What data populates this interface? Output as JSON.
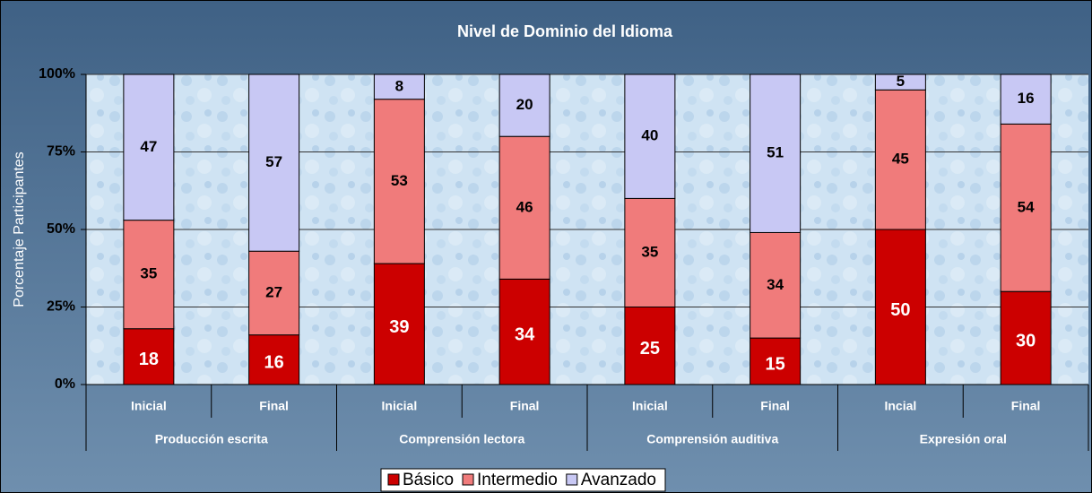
{
  "chart_data": {
    "type": "stacked_bar",
    "title": "Nivel de Dominio del Idioma",
    "y_label": "Porcentaje Participantes",
    "categories": [
      "Inicial",
      "Final",
      "Inicial",
      "Final",
      "Inicial",
      "Final",
      "Incial",
      "Final"
    ],
    "groups": [
      "Producción escrita",
      "Comprensión lectora",
      "Comprensión auditiva",
      "Expresión oral"
    ],
    "series": [
      {
        "name": "Básico",
        "color": "#cc0000",
        "label_color": "#ffffff",
        "values": [
          18,
          16,
          39,
          34,
          25,
          15,
          50,
          30
        ]
      },
      {
        "name": "Intermedio",
        "color": "#f07b7b",
        "label_color": "#000000",
        "values": [
          35,
          27,
          53,
          46,
          35,
          34,
          45,
          54
        ]
      },
      {
        "name": "Avanzado",
        "color": "#c8c8f4",
        "label_color": "#000000",
        "values": [
          47,
          57,
          8,
          20,
          40,
          51,
          5,
          16
        ]
      }
    ],
    "ylim": [
      0,
      100
    ],
    "yticks": [
      {
        "value": 0,
        "label": "0%"
      },
      {
        "value": 25,
        "label": "25%"
      },
      {
        "value": 50,
        "label": "50%"
      },
      {
        "value": 75,
        "label": "75%"
      },
      {
        "value": 100,
        "label": "100%"
      }
    ],
    "grid": true
  }
}
